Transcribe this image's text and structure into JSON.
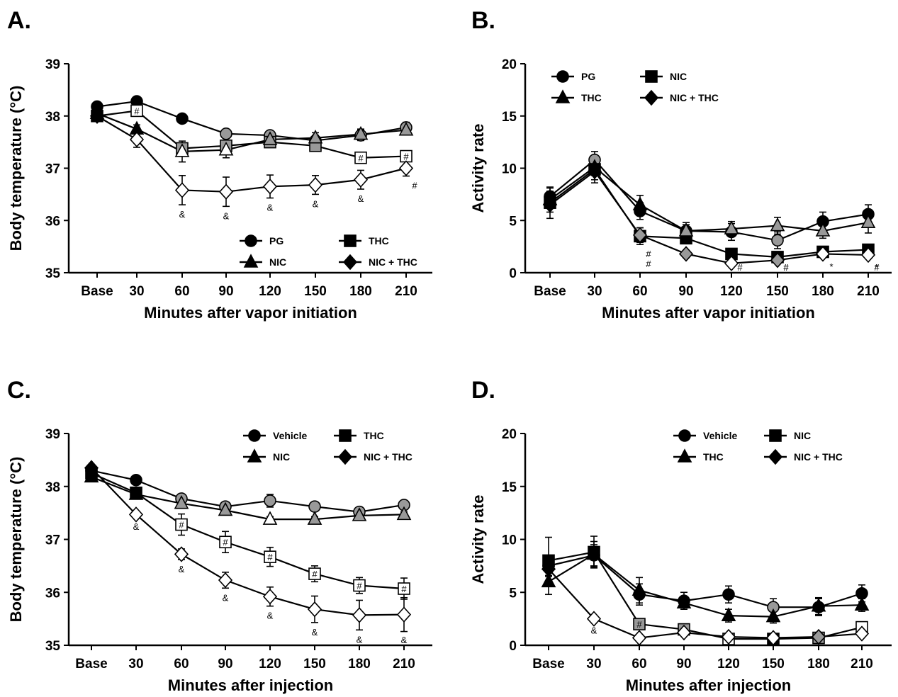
{
  "panels": [
    {
      "id": "A",
      "letter": "A.",
      "xlabel": "Minutes after vapor initiation",
      "ylabel": "Body temperature (°C)",
      "yticks": [
        "35",
        "36",
        "37",
        "38",
        "39"
      ],
      "xticks": [
        "Base",
        "30",
        "60",
        "90",
        "120",
        "150",
        "180",
        "210"
      ],
      "legend": [
        "PG",
        "THC",
        "NIC",
        "NIC + THC"
      ]
    },
    {
      "id": "B",
      "letter": "B.",
      "xlabel": "Minutes after vapor initiation",
      "ylabel": "Activity rate",
      "yticks": [
        "0",
        "5",
        "10",
        "15",
        "20"
      ],
      "xticks": [
        "Base",
        "30",
        "60",
        "90",
        "120",
        "150",
        "180",
        "210"
      ],
      "legend": [
        "PG",
        "NIC",
        "THC",
        "NIC + THC"
      ]
    },
    {
      "id": "C",
      "letter": "C.",
      "xlabel": "Minutes after injection",
      "ylabel": "Body temperature (°C)",
      "yticks": [
        "35",
        "36",
        "37",
        "38",
        "39"
      ],
      "xticks": [
        "Base",
        "30",
        "60",
        "90",
        "120",
        "150",
        "180",
        "210"
      ],
      "legend": [
        "Vehicle",
        "THC",
        "NIC",
        "NIC + THC"
      ]
    },
    {
      "id": "D",
      "letter": "D.",
      "xlabel": "Minutes after injection",
      "ylabel": "Activity rate",
      "yticks": [
        "0",
        "5",
        "10",
        "15",
        "20"
      ],
      "xticks": [
        "Base",
        "30",
        "60",
        "90",
        "120",
        "150",
        "180",
        "210"
      ],
      "legend": [
        "Vehicle",
        "NIC",
        "THC",
        "NIC + THC"
      ]
    }
  ],
  "chart_data": [
    {
      "panel": "A",
      "type": "line",
      "x": [
        "Base",
        "30",
        "60",
        "90",
        "120",
        "150",
        "180",
        "210"
      ],
      "xlabel": "Minutes after vapor initiation",
      "ylabel": "Body temperature (°C)",
      "ylim": [
        35,
        39
      ],
      "yticks": [
        35,
        36,
        37,
        38,
        39
      ],
      "legend_position": "bottom-right",
      "series": [
        {
          "name": "PG",
          "marker": "circle",
          "values": [
            38.18,
            38.28,
            37.95,
            37.66,
            37.63,
            37.53,
            37.63,
            37.78
          ],
          "errors": [
            0.08,
            0.05,
            0.05,
            0.07,
            0.08,
            0.1,
            0.1,
            0.1
          ],
          "fills": [
            "#000000",
            "#000000",
            "#000000",
            "#999999",
            "#999999",
            "#999999",
            "#999999",
            "#999999"
          ]
        },
        {
          "name": "THC",
          "marker": "square",
          "values": [
            38.0,
            38.1,
            37.38,
            37.43,
            37.5,
            37.43,
            37.2,
            37.23
          ],
          "errors": [
            0.08,
            0.06,
            0.1,
            0.1,
            0.1,
            0.08,
            0.05,
            0.05
          ],
          "fills": [
            "#000000",
            "#ffffff",
            "#999999",
            "#999999",
            "#999999",
            "#999999",
            "#ffffff",
            "#ffffff"
          ],
          "labels": [
            "",
            "#",
            "",
            "",
            "",
            "",
            "#",
            "#"
          ]
        },
        {
          "name": "NIC",
          "marker": "triangle",
          "values": [
            38.05,
            37.75,
            37.32,
            37.35,
            37.55,
            37.58,
            37.65,
            37.73
          ],
          "errors": [
            0.08,
            0.08,
            0.2,
            0.15,
            0.1,
            0.1,
            0.1,
            0.08
          ],
          "fills": [
            "#000000",
            "#000000",
            "#ffffff",
            "#ffffff",
            "#999999",
            "#999999",
            "#999999",
            "#999999"
          ]
        },
        {
          "name": "NIC + THC",
          "marker": "diamond",
          "values": [
            38.0,
            37.55,
            36.58,
            36.55,
            36.65,
            36.68,
            36.78,
            37.0
          ],
          "errors": [
            0.08,
            0.15,
            0.28,
            0.28,
            0.22,
            0.18,
            0.18,
            0.15
          ],
          "fills": [
            "#000000",
            "#ffffff",
            "#ffffff",
            "#ffffff",
            "#ffffff",
            "#ffffff",
            "#ffffff",
            "#ffffff"
          ]
        }
      ],
      "annotations": [
        {
          "x": "60",
          "text": "&"
        },
        {
          "x": "90",
          "text": "&"
        },
        {
          "x": "120",
          "text": "&"
        },
        {
          "x": "150",
          "text": "&"
        },
        {
          "x": "180",
          "text": "&"
        },
        {
          "x": "210",
          "text": "#"
        }
      ]
    },
    {
      "panel": "B",
      "type": "line",
      "x": [
        "Base",
        "30",
        "60",
        "90",
        "120",
        "150",
        "180",
        "210"
      ],
      "xlabel": "Minutes after vapor initiation",
      "ylabel": "Activity rate",
      "ylim": [
        0,
        20
      ],
      "yticks": [
        0,
        5,
        10,
        15,
        20
      ],
      "legend_position": "top-left",
      "series": [
        {
          "name": "PG",
          "marker": "circle",
          "values": [
            7.3,
            10.8,
            5.9,
            4.0,
            3.9,
            3.1,
            4.9,
            5.6
          ],
          "errors": [
            0.8,
            0.8,
            0.8,
            0.8,
            0.8,
            0.8,
            0.9,
            0.9
          ],
          "fills": [
            "#000000",
            "#999999",
            "#000000",
            "#000000",
            "#000000",
            "#999999",
            "#000000",
            "#000000"
          ]
        },
        {
          "name": "NIC",
          "marker": "square",
          "values": [
            6.7,
            9.9,
            3.5,
            3.3,
            1.8,
            1.5,
            2.0,
            2.2
          ],
          "errors": [
            1.5,
            1.3,
            0.8,
            0.5,
            0.3,
            0.3,
            0.3,
            0.4
          ],
          "fills": [
            "#000000",
            "#000000",
            "#000000",
            "#000000",
            "#000000",
            "#000000",
            "#000000",
            "#000000"
          ]
        },
        {
          "name": "THC",
          "marker": "triangle",
          "values": [
            7.0,
            10.1,
            6.5,
            4.0,
            4.2,
            4.5,
            4.0,
            4.8
          ],
          "errors": [
            0.8,
            0.8,
            0.9,
            0.6,
            0.7,
            0.8,
            0.7,
            1.0
          ],
          "fills": [
            "#000000",
            "#000000",
            "#000000",
            "#999999",
            "#999999",
            "#999999",
            "#999999",
            "#999999"
          ]
        },
        {
          "name": "NIC + THC",
          "marker": "diamond",
          "values": [
            6.5,
            9.7,
            3.6,
            1.8,
            0.9,
            1.2,
            1.8,
            1.7
          ],
          "errors": [
            0.7,
            0.8,
            0.7,
            0.3,
            0.2,
            0.3,
            0.3,
            0.3
          ],
          "fills": [
            "#000000",
            "#000000",
            "#999999",
            "#999999",
            "#ffffff",
            "#999999",
            "#ffffff",
            "#ffffff"
          ]
        }
      ],
      "annotations": [
        {
          "x": "60",
          "text": "#"
        },
        {
          "x": "60",
          "text": "#"
        },
        {
          "x": "120",
          "text": "#"
        },
        {
          "x": "150",
          "text": "#"
        },
        {
          "x": "150",
          "text": "#"
        },
        {
          "x": "180",
          "text": "*"
        },
        {
          "x": "210",
          "text": "*"
        },
        {
          "x": "210",
          "text": "#"
        }
      ]
    },
    {
      "panel": "C",
      "type": "line",
      "x": [
        "Base",
        "30",
        "60",
        "90",
        "120",
        "150",
        "180",
        "210"
      ],
      "xlabel": "Minutes after injection",
      "ylabel": "Body temperature (°C)",
      "ylim": [
        35,
        39
      ],
      "yticks": [
        35,
        36,
        37,
        38,
        39
      ],
      "legend_position": "top-right",
      "series": [
        {
          "name": "Vehicle",
          "marker": "circle",
          "values": [
            38.3,
            38.12,
            37.77,
            37.62,
            37.73,
            37.62,
            37.52,
            37.65
          ],
          "errors": [
            0.05,
            0.05,
            0.05,
            0.05,
            0.12,
            0.08,
            0.05,
            0.05
          ],
          "fills": [
            "#000000",
            "#000000",
            "#999999",
            "#999999",
            "#999999",
            "#999999",
            "#999999",
            "#999999"
          ]
        },
        {
          "name": "THC",
          "marker": "square",
          "values": [
            38.25,
            37.88,
            37.28,
            36.95,
            36.67,
            36.35,
            36.13,
            36.07
          ],
          "errors": [
            0.05,
            0.08,
            0.2,
            0.2,
            0.18,
            0.15,
            0.15,
            0.2
          ],
          "fills": [
            "#000000",
            "#000000",
            "#ffffff",
            "#ffffff",
            "#ffffff",
            "#ffffff",
            "#ffffff",
            "#ffffff"
          ],
          "labels": [
            "",
            "",
            "#",
            "#",
            "#",
            "#",
            "#",
            "#"
          ]
        },
        {
          "name": "NIC",
          "marker": "triangle",
          "values": [
            38.18,
            37.85,
            37.68,
            37.55,
            37.38,
            37.38,
            37.45,
            37.47
          ],
          "errors": [
            0.05,
            0.05,
            0.05,
            0.05,
            0.05,
            0.05,
            0.05,
            0.05
          ],
          "fills": [
            "#000000",
            "#000000",
            "#999999",
            "#999999",
            "#ffffff",
            "#999999",
            "#999999",
            "#999999"
          ]
        },
        {
          "name": "NIC + THC",
          "marker": "diamond",
          "values": [
            38.35,
            37.47,
            36.72,
            36.23,
            35.92,
            35.68,
            35.57,
            35.58
          ],
          "errors": [
            0.05,
            0.05,
            0.1,
            0.15,
            0.18,
            0.25,
            0.28,
            0.32
          ],
          "fills": [
            "#000000",
            "#ffffff",
            "#ffffff",
            "#ffffff",
            "#ffffff",
            "#ffffff",
            "#ffffff",
            "#ffffff"
          ]
        }
      ],
      "annotations": [
        {
          "x": "30",
          "text": "&"
        },
        {
          "x": "60",
          "text": "&"
        },
        {
          "x": "90",
          "text": "&"
        },
        {
          "x": "120",
          "text": "&"
        },
        {
          "x": "150",
          "text": "&"
        },
        {
          "x": "180",
          "text": "&"
        },
        {
          "x": "210",
          "text": "&"
        }
      ]
    },
    {
      "panel": "D",
      "type": "line",
      "x": [
        "Base",
        "30",
        "60",
        "90",
        "120",
        "150",
        "180",
        "210"
      ],
      "xlabel": "Minutes after injection",
      "ylabel": "Activity rate",
      "ylim": [
        0,
        20
      ],
      "yticks": [
        0,
        5,
        10,
        15,
        20
      ],
      "legend_position": "top-right",
      "series": [
        {
          "name": "Vehicle",
          "marker": "circle",
          "values": [
            7.5,
            8.5,
            4.8,
            4.2,
            4.8,
            3.6,
            3.6,
            4.9
          ],
          "errors": [
            1.0,
            1.0,
            1.0,
            0.8,
            0.8,
            0.8,
            0.8,
            0.8
          ],
          "fills": [
            "#000000",
            "#000000",
            "#000000",
            "#000000",
            "#000000",
            "#999999",
            "#000000",
            "#000000"
          ]
        },
        {
          "name": "NIC",
          "marker": "square",
          "values": [
            8.0,
            8.8,
            2.0,
            1.5,
            0.6,
            0.6,
            0.7,
            1.7
          ],
          "errors": [
            2.2,
            1.5,
            0.2,
            0.2,
            0.2,
            0.2,
            0.2,
            0.2
          ],
          "fills": [
            "#000000",
            "#000000",
            "#999999",
            "#999999",
            "#ffffff",
            "#000000",
            "#999999",
            "#ffffff"
          ],
          "labels": [
            "",
            "",
            "#",
            "",
            "",
            "",
            "",
            ""
          ]
        },
        {
          "name": "THC",
          "marker": "triangle",
          "values": [
            6.0,
            8.6,
            5.2,
            4.0,
            2.8,
            2.7,
            3.7,
            3.8
          ],
          "errors": [
            1.2,
            1.2,
            1.2,
            0.6,
            0.6,
            0.6,
            0.8,
            0.6
          ],
          "fills": [
            "#000000",
            "#000000",
            "#000000",
            "#000000",
            "#000000",
            "#000000",
            "#000000",
            "#000000"
          ]
        },
        {
          "name": "NIC + THC",
          "marker": "diamond",
          "values": [
            7.2,
            2.5,
            0.7,
            1.2,
            0.8,
            0.7,
            0.8,
            1.1
          ],
          "errors": [
            0.6,
            0.2,
            0.2,
            0.2,
            0.2,
            0.2,
            0.2,
            0.2
          ],
          "fills": [
            "#000000",
            "#ffffff",
            "#ffffff",
            "#ffffff",
            "#ffffff",
            "#ffffff",
            "#999999",
            "#ffffff"
          ]
        }
      ],
      "annotations": [
        {
          "x": "30",
          "text": "&"
        }
      ]
    }
  ]
}
